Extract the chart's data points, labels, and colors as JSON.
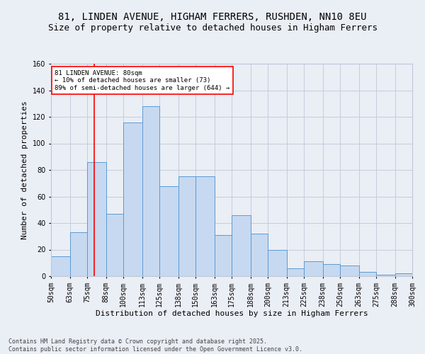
{
  "title_line1": "81, LINDEN AVENUE, HIGHAM FERRERS, RUSHDEN, NN10 8EU",
  "title_line2": "Size of property relative to detached houses in Higham Ferrers",
  "xlabel": "Distribution of detached houses by size in Higham Ferrers",
  "ylabel": "Number of detached properties",
  "footnote": "Contains HM Land Registry data © Crown copyright and database right 2025.\nContains public sector information licensed under the Open Government Licence v3.0.",
  "categories": [
    "50sqm",
    "63sqm",
    "75sqm",
    "88sqm",
    "100sqm",
    "113sqm",
    "125sqm",
    "138sqm",
    "150sqm",
    "163sqm",
    "175sqm",
    "188sqm",
    "200sqm",
    "213sqm",
    "225sqm",
    "238sqm",
    "250sqm",
    "263sqm",
    "275sqm",
    "288sqm",
    "300sqm"
  ],
  "hist_values": [
    15,
    33,
    86,
    47,
    116,
    128,
    68,
    75,
    75,
    31,
    46,
    32,
    20,
    6,
    11,
    9,
    8,
    3,
    1,
    2
  ],
  "bin_edges": [
    50,
    63,
    75,
    88,
    100,
    113,
    125,
    138,
    150,
    163,
    175,
    188,
    200,
    213,
    225,
    238,
    250,
    263,
    275,
    288,
    300
  ],
  "bar_color": "#c7d9f0",
  "bar_edge_color": "#5b9bd5",
  "property_size": 80,
  "vline_color": "#ff0000",
  "annotation_text": "81 LINDEN AVENUE: 80sqm\n← 10% of detached houses are smaller (73)\n89% of semi-detached houses are larger (644) →",
  "annotation_box_color": "#ffffff",
  "annotation_box_edge": "#ff0000",
  "ylim_max": 160,
  "yticks": [
    0,
    20,
    40,
    60,
    80,
    100,
    120,
    140,
    160
  ],
  "grid_color": "#c0c8d8",
  "bg_color": "#eaeef5",
  "title_fontsize": 10,
  "subtitle_fontsize": 9,
  "axis_label_fontsize": 8,
  "tick_fontsize": 7,
  "footnote_fontsize": 6
}
